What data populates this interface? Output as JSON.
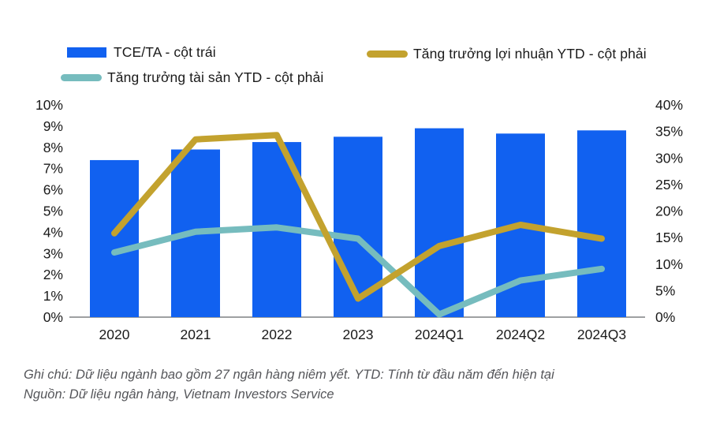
{
  "legend": {
    "items": [
      {
        "label": "TCE/TA - cột trái",
        "color": "#1161f0",
        "swatch": "bar"
      },
      {
        "label": "Tăng trưởng lợi nhuận YTD - cột phải",
        "color": "#c3a22e",
        "swatch": "line"
      },
      {
        "label": "Tăng trưởng tài sản YTD - cột phải",
        "color": "#76bcbe",
        "swatch": "line"
      }
    ]
  },
  "chart_data": {
    "type": "bar",
    "categories": [
      "2020",
      "2021",
      "2022",
      "2023",
      "2024Q1",
      "2024Q2",
      "2024Q3"
    ],
    "series": [
      {
        "name": "TCE/TA - cột trái",
        "type": "bar",
        "axis": "left",
        "color": "#1161f0",
        "values": [
          7.4,
          7.9,
          8.25,
          8.5,
          8.9,
          8.65,
          8.8
        ]
      },
      {
        "name": "Tăng trưởng lợi nhuận YTD - cột phải",
        "type": "line",
        "axis": "right",
        "color": "#c3a22e",
        "values": [
          15.8,
          33.5,
          34.3,
          3.5,
          13.4,
          17.4,
          14.8
        ]
      },
      {
        "name": "Tăng trưởng tài sản YTD - cột phải",
        "type": "line",
        "axis": "right",
        "color": "#76bcbe",
        "values": [
          12.2,
          16.1,
          16.9,
          14.8,
          0.5,
          6.9,
          9.1
        ]
      }
    ],
    "left_axis": {
      "min": 0,
      "max": 10,
      "tick_values": [
        10,
        9,
        8,
        7,
        6,
        5,
        4,
        3,
        2,
        1,
        0
      ],
      "tick_labels": [
        "10%",
        "9%",
        "8%",
        "7%",
        "6%",
        "5%",
        "4%",
        "3%",
        "2%",
        "1%",
        "0%"
      ]
    },
    "right_axis": {
      "min": 0,
      "max": 40,
      "tick_values": [
        40,
        35,
        30,
        25,
        20,
        15,
        10,
        5,
        0
      ],
      "tick_labels": [
        "40%",
        "35%",
        "30%",
        "25%",
        "20%",
        "15%",
        "10%",
        "5%",
        "0%"
      ]
    },
    "title": "",
    "xlabel": "",
    "ylabel": "",
    "grid": false,
    "legend_position": "top-left",
    "axis_line_color": "#7f8084",
    "text_color": "#1a1a1a"
  },
  "footnote": {
    "line1": "Ghi chú: Dữ liệu ngành bao gồm 27 ngân hàng niêm yết. YTD: Tính từ đầu năm đến hiện tại",
    "line2": "Nguồn: Dữ liệu ngân hàng, Vietnam Investors Service"
  }
}
